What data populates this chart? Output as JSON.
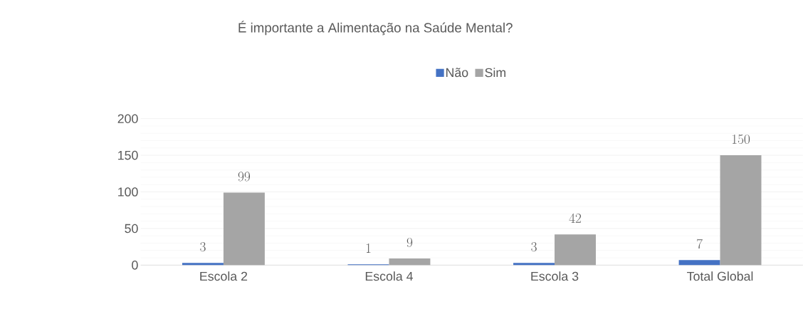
{
  "chart_data": {
    "type": "bar",
    "title": "É importante a Alimentação na Saúde Mental?",
    "categories": [
      "Escola 2",
      "Escola 4",
      "Escola 3",
      "Total Global"
    ],
    "series": [
      {
        "name": "Não",
        "color": "#4472c4",
        "values": [
          3,
          1,
          3,
          7
        ]
      },
      {
        "name": "Sim",
        "color": "#a5a5a5",
        "values": [
          99,
          9,
          42,
          150
        ]
      }
    ],
    "ylim": [
      0,
      200
    ],
    "yticks": [
      0,
      50,
      100,
      150,
      200
    ],
    "grid": "y",
    "legend": "top",
    "data_labels": true
  }
}
